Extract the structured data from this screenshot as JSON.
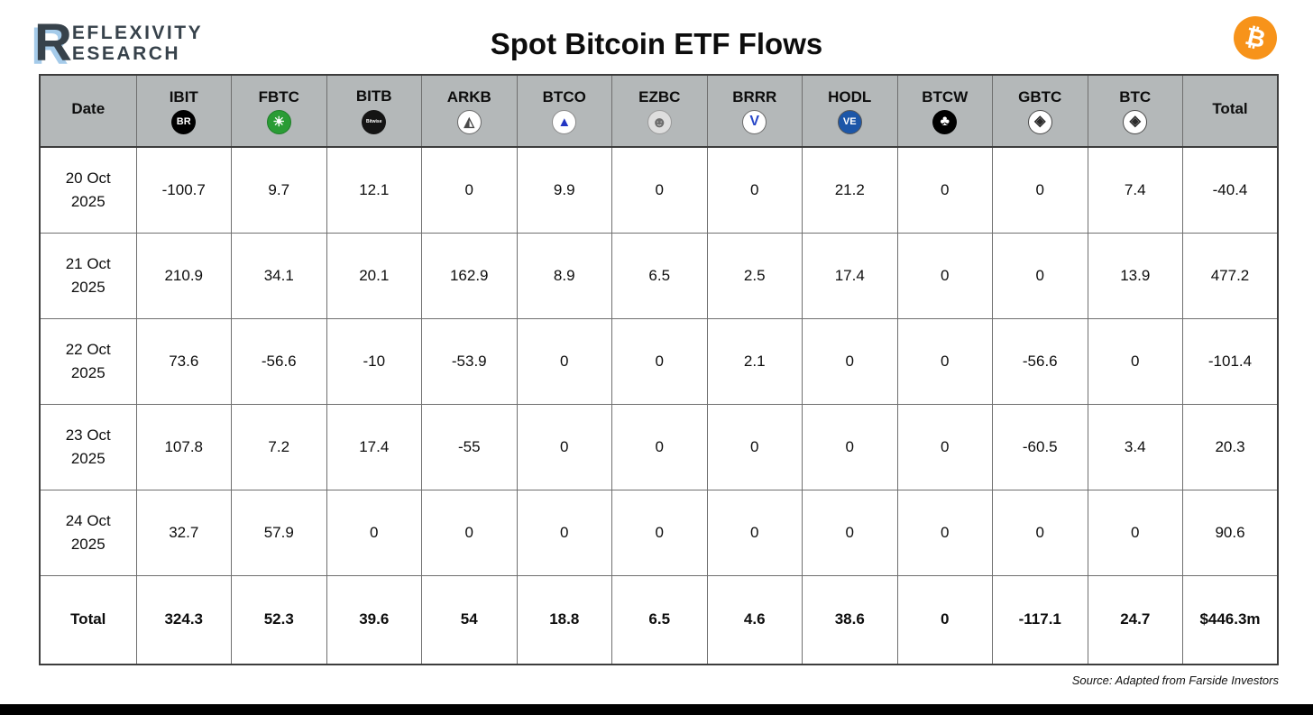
{
  "page": {
    "logo": {
      "letter": "R",
      "line1": "EFLEXIVITY",
      "line2": "ESEARCH"
    },
    "title": "Spot Bitcoin ETF Flows",
    "bitcoin_badge_glyph": "₿",
    "source_note": "Source: Adapted from Farside Investors",
    "colors": {
      "bitcoin_orange": "#F7931A",
      "header_gray": "#B4B8B9",
      "logo_charcoal": "#37424B",
      "logo_shadow_blue": "#A5CBEA"
    }
  },
  "icons": {
    "IBIT": {
      "name": "blackrock-icon",
      "glyph": "BR",
      "bg": "#000000",
      "fg": "#ffffff",
      "fs": 11,
      "bold": true
    },
    "FBTC": {
      "name": "fidelity-icon",
      "glyph": "☀",
      "bg": "#2a9c35",
      "fg": "#ffffff",
      "fs": 15,
      "border": "#1e7d28"
    },
    "BITB": {
      "name": "bitwise-icon",
      "glyph": "Bitwise",
      "bg": "#141414",
      "fg": "#ffffff",
      "fs": 5
    },
    "ARKB": {
      "name": "ark-invest-icon",
      "glyph": "◭",
      "bg": "#ffffff",
      "fg": "#4a4a4a",
      "fs": 15,
      "border": "#6b6b6b"
    },
    "BTCO": {
      "name": "invesco-icon",
      "glyph": "▲",
      "bg": "#ffffff",
      "fg": "#2336c3",
      "fs": 15,
      "border": "#8a8a8a"
    },
    "EZBC": {
      "name": "franklin-templeton-icon",
      "glyph": "☻",
      "bg": "#dedede",
      "fg": "#6e6e6e",
      "fs": 17,
      "border": "#9a9a9a"
    },
    "BRRR": {
      "name": "valkyrie-icon",
      "glyph": "V",
      "bg": "#ffffff",
      "fg": "#2847c8",
      "fs": 16,
      "bold": true,
      "border": "#6b6b6b"
    },
    "HODL": {
      "name": "vaneck-icon",
      "glyph": "VE",
      "bg": "#1c56a8",
      "fg": "#ffffff",
      "fs": 11,
      "bold": true,
      "border": "#555555"
    },
    "BTCW": {
      "name": "wisdomtree-icon",
      "glyph": "♣",
      "bg": "#000000",
      "fg": "#ffffff",
      "fs": 16
    },
    "GBTC": {
      "name": "grayscale-icon",
      "glyph": "◈",
      "bg": "#ffffff",
      "fg": "#2b2b2b",
      "fs": 16,
      "border": "#4d4d4d"
    },
    "BTC": {
      "name": "grayscale-icon",
      "glyph": "◈",
      "bg": "#ffffff",
      "fg": "#2b2b2b",
      "fs": 16,
      "border": "#4d4d4d"
    }
  },
  "chart_data": {
    "type": "table",
    "title": "Spot Bitcoin ETF Flows",
    "columns": [
      "Date",
      "IBIT",
      "FBTC",
      "BITB",
      "ARKB",
      "BTCO",
      "EZBC",
      "BRRR",
      "HODL",
      "BTCW",
      "GBTC",
      "BTC",
      "Total"
    ],
    "rows": [
      {
        "date": "20 Oct 2025",
        "values": [
          "-100.7",
          "9.7",
          "12.1",
          "0",
          "9.9",
          "0",
          "0",
          "21.2",
          "0",
          "0",
          "7.4",
          "-40.4"
        ]
      },
      {
        "date": "21 Oct 2025",
        "values": [
          "210.9",
          "34.1",
          "20.1",
          "162.9",
          "8.9",
          "6.5",
          "2.5",
          "17.4",
          "0",
          "0",
          "13.9",
          "477.2"
        ]
      },
      {
        "date": "22 Oct 2025",
        "values": [
          "73.6",
          "-56.6",
          "-10",
          "-53.9",
          "0",
          "0",
          "2.1",
          "0",
          "0",
          "-56.6",
          "0",
          "-101.4"
        ]
      },
      {
        "date": "23 Oct 2025",
        "values": [
          "107.8",
          "7.2",
          "17.4",
          "-55",
          "0",
          "0",
          "0",
          "0",
          "0",
          "-60.5",
          "3.4",
          "20.3"
        ]
      },
      {
        "date": "24 Oct 2025",
        "values": [
          "32.7",
          "57.9",
          "0",
          "0",
          "0",
          "0",
          "0",
          "0",
          "0",
          "0",
          "0",
          "90.6"
        ]
      }
    ],
    "totals": {
      "label": "Total",
      "values": [
        "324.3",
        "52.3",
        "39.6",
        "54",
        "18.8",
        "6.5",
        "4.6",
        "38.6",
        "0",
        "-117.1",
        "24.7",
        "$446.3m"
      ]
    }
  }
}
